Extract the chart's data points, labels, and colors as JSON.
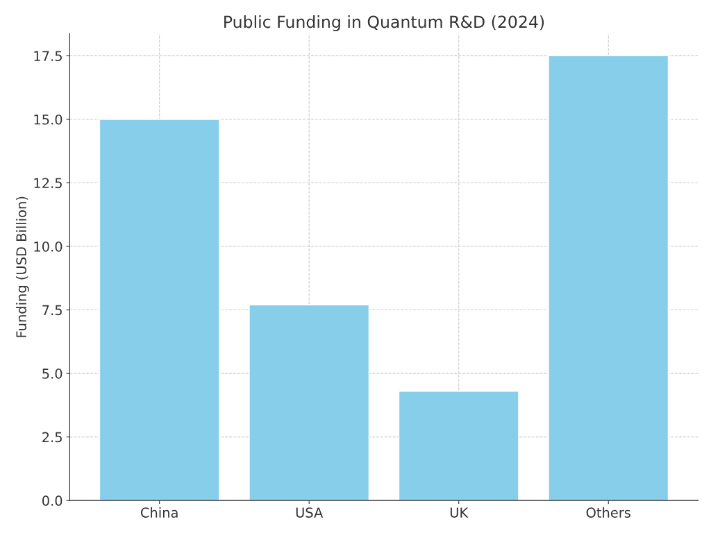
{
  "chart_data": {
    "type": "bar",
    "title": "Public Funding in Quantum R&D (2024)",
    "ylabel": "Funding (USD Billion)",
    "categories": [
      "China",
      "USA",
      "UK",
      "Others"
    ],
    "values": [
      15.0,
      7.7,
      4.3,
      17.5
    ],
    "color": "#87ceeb",
    "ylim": [
      0,
      18.375
    ],
    "yticks": [
      {
        "value": 0,
        "label": "0.0"
      },
      {
        "value": 2.5,
        "label": "2.5"
      },
      {
        "value": 5,
        "label": "5.0"
      },
      {
        "value": 7.5,
        "label": "7.5"
      },
      {
        "value": 10,
        "label": "10.0"
      },
      {
        "value": 12.5,
        "label": "12.5"
      },
      {
        "value": 15,
        "label": "15.0"
      },
      {
        "value": 17.5,
        "label": "17.5"
      }
    ],
    "grid": true
  }
}
